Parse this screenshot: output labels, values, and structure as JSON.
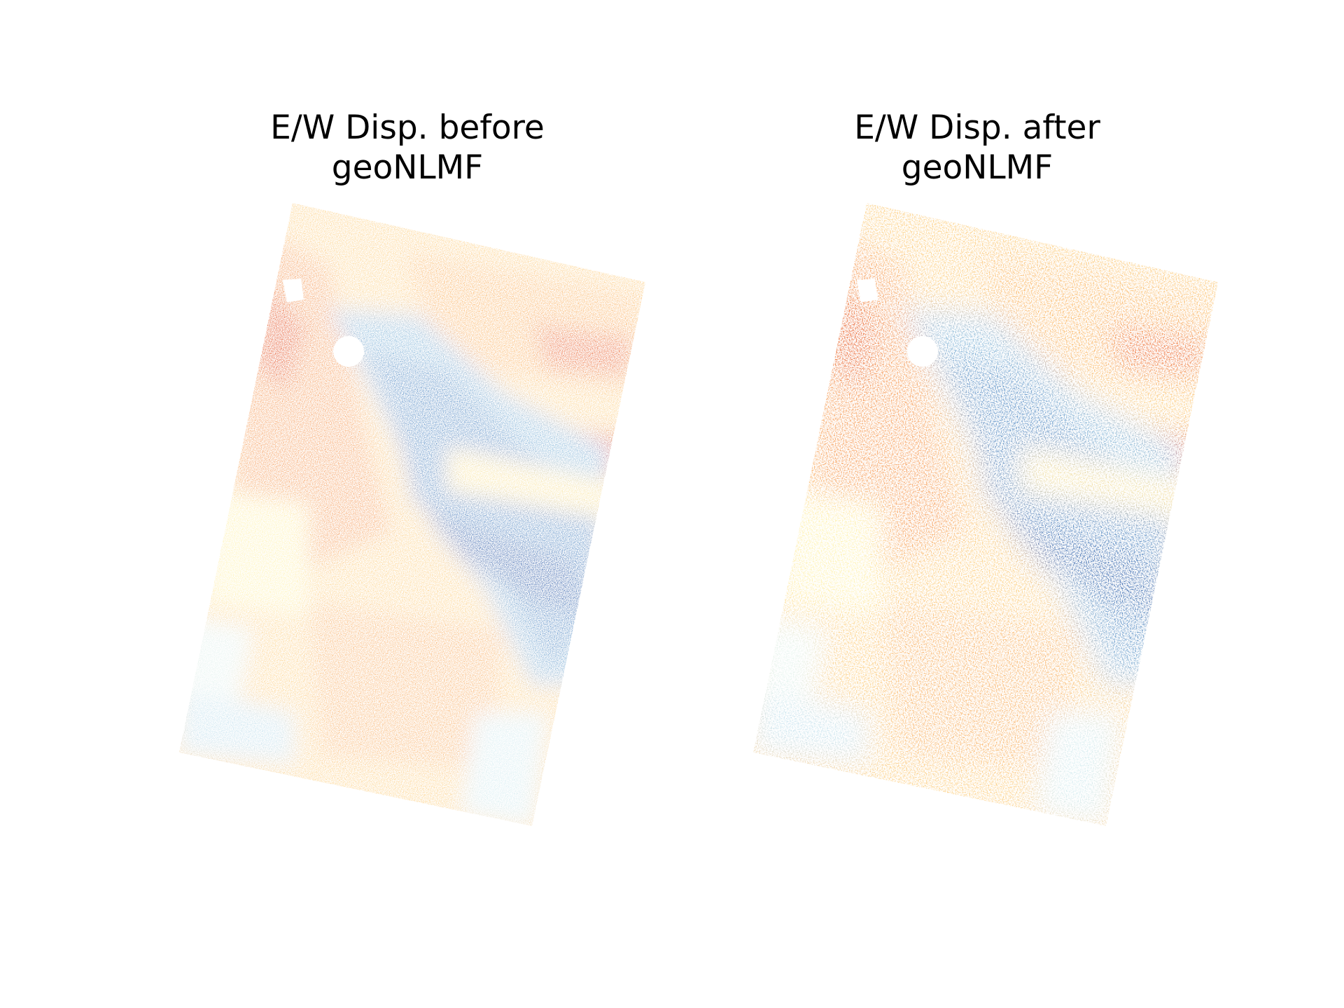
{
  "panels": [
    {
      "id": "before",
      "title_line1": "E/W Disp. before",
      "title_line2": "geoNLMF"
    },
    {
      "id": "after",
      "title_line1": "E/W Disp. after",
      "title_line2": "geoNLMF"
    }
  ],
  "colormap": {
    "name": "RdYlBu",
    "stops": [
      "#a50026",
      "#d73027",
      "#f46d43",
      "#fdae61",
      "#fee090",
      "#ffffbf",
      "#e0f3f8",
      "#abd9e9",
      "#74add1",
      "#4575b4",
      "#313695"
    ]
  }
}
